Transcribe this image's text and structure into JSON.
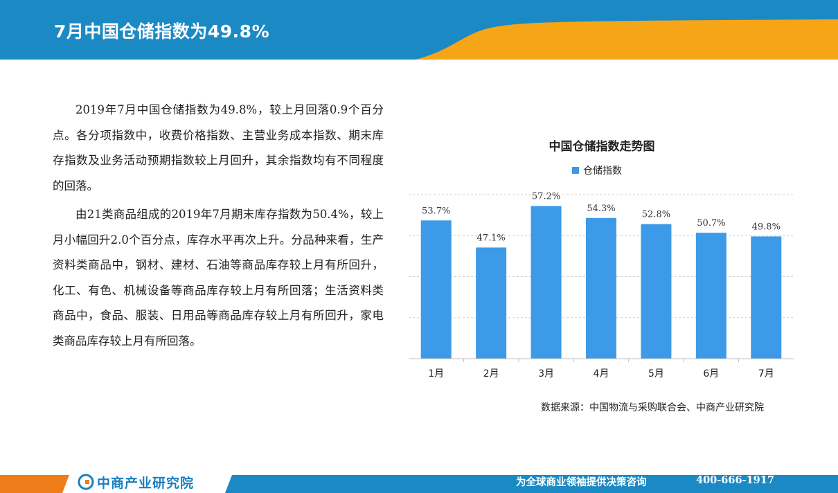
{
  "header": {
    "title": "7月中国仓储指数为49.8%"
  },
  "body": {
    "paragraphs": [
      "2019年7月中国仓储指数为49.8%，较上月回落0.9个百分点。各分项指数中，收费价格指数、主营业务成本指数、期末库存指数及业务活动预期指数较上月回升，其余指数均有不同程度的回落。",
      "由21类商品组成的2019年7月期末库存指数为50.4%，较上月小幅回升2.0个百分点，库存水平再次上升。分品种来看，生产资料类商品中，钢材、建材、石油等商品库存较上月有所回升，化工、有色、机械设备等商品库存较上月有所回落；生活资料类商品中，食品、服装、日用品等商品库存较上月有所回升，家电类商品库存较上月有所回落。"
    ]
  },
  "chart_data": {
    "type": "bar",
    "title": "中国仓储指数走势图",
    "categories": [
      "1月",
      "2月",
      "3月",
      "4月",
      "5月",
      "6月",
      "7月"
    ],
    "series": [
      {
        "name": "仓储指数",
        "values": [
          53.7,
          47.1,
          57.2,
          54.3,
          52.8,
          50.7,
          49.8
        ]
      }
    ],
    "data_labels": [
      "53.7%",
      "47.1%",
      "57.2%",
      "54.3%",
      "52.8%",
      "50.7%",
      "49.8%"
    ],
    "ylim": [
      20,
      60
    ],
    "grid": true,
    "legend": "top",
    "bar_color": "#3d9ae8"
  },
  "source": "数据来源：中国物流与采购联合会、中商产业研究院",
  "footer": {
    "logo_text": "中商产业研究院",
    "slogan": "为全球商业领袖提供决策咨询",
    "phone": "400-666-1917"
  },
  "colors": {
    "header_blue": "#1b8ac4",
    "accent_orange": "#f5a516",
    "footer_blue": "#1b8ac4",
    "footer_orange": "#ef7d1a"
  }
}
